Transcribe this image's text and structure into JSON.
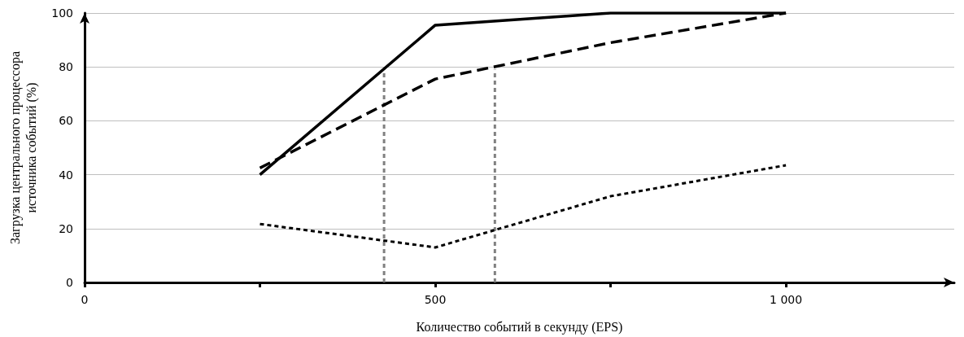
{
  "chart_data": {
    "type": "line",
    "xlabel": "Количество событий в секунду (EPS)",
    "ylabel": "Загрузка центрального процессора\nисточника событий (%)",
    "xlim": [
      0,
      1240
    ],
    "xticks": [
      0,
      {
        "value": 250,
        "label": null
      },
      500,
      {
        "value": 750,
        "label": null
      },
      {
        "value": 1000,
        "label": "1 000"
      }
    ],
    "ylim": [
      0,
      100
    ],
    "yticks": [
      0,
      20,
      40,
      60,
      80,
      100
    ],
    "grid": "y",
    "marker": "none",
    "series": [
      {
        "color": "#000000",
        "line_style": "solid",
        "x": [
          250,
          500,
          750,
          1000
        ],
        "values": [
          40,
          95.5,
          100,
          100
        ]
      },
      {
        "color": "#000000",
        "line_style": "dashed",
        "x": [
          250,
          500,
          750,
          1000
        ],
        "values": [
          42.5,
          75.5,
          89,
          100
        ]
      },
      {
        "color": "#000000",
        "line_style": "dotted",
        "x": [
          250,
          500,
          750,
          1000
        ],
        "values": [
          21.7,
          13,
          32,
          43.5
        ]
      },
      {
        "color": "#808080",
        "line_style": "dotted",
        "x": [
          427,
          427
        ],
        "values": [
          0,
          79
        ]
      },
      {
        "color": "#808080",
        "line_style": "dotted",
        "x": [
          585,
          585
        ],
        "values": [
          0,
          79
        ]
      }
    ]
  }
}
